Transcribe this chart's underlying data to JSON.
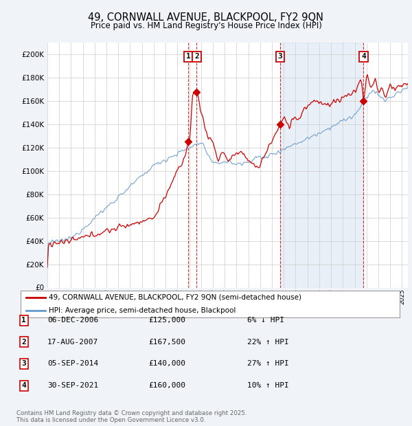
{
  "title": "49, CORNWALL AVENUE, BLACKPOOL, FY2 9QN",
  "subtitle": "Price paid vs. HM Land Registry's House Price Index (HPI)",
  "ylabel_ticks": [
    "£0",
    "£20K",
    "£40K",
    "£60K",
    "£80K",
    "£100K",
    "£120K",
    "£140K",
    "£160K",
    "£180K",
    "£200K"
  ],
  "ytick_values": [
    0,
    20000,
    40000,
    60000,
    80000,
    100000,
    120000,
    140000,
    160000,
    180000,
    200000
  ],
  "ylim": [
    0,
    210000
  ],
  "xlim_start": 1995.0,
  "xlim_end": 2025.5,
  "transactions": [
    {
      "label": "1",
      "year": 2006.92,
      "price": 125000,
      "date": "06-DEC-2006",
      "pct": "6%",
      "dir": "↓"
    },
    {
      "label": "2",
      "year": 2007.63,
      "price": 167500,
      "date": "17-AUG-2007",
      "pct": "22%",
      "dir": "↑"
    },
    {
      "label": "3",
      "year": 2014.68,
      "price": 140000,
      "date": "05-SEP-2014",
      "pct": "27%",
      "dir": "↑"
    },
    {
      "label": "4",
      "year": 2021.75,
      "price": 160000,
      "date": "30-SEP-2021",
      "pct": "10%",
      "dir": "↑"
    }
  ],
  "legend_line1": "49, CORNWALL AVENUE, BLACKPOOL, FY2 9QN (semi-detached house)",
  "legend_line2": "HPI: Average price, semi-detached house, Blackpool",
  "footer1": "Contains HM Land Registry data © Crown copyright and database right 2025.",
  "footer2": "This data is licensed under the Open Government Licence v3.0.",
  "line_color_red": "#cc0000",
  "line_color_blue": "#6699cc",
  "shade_color": "#ddeeff",
  "background_color": "#f0f4f8",
  "plot_bg": "#ffffff",
  "grid_color": "#cccccc"
}
